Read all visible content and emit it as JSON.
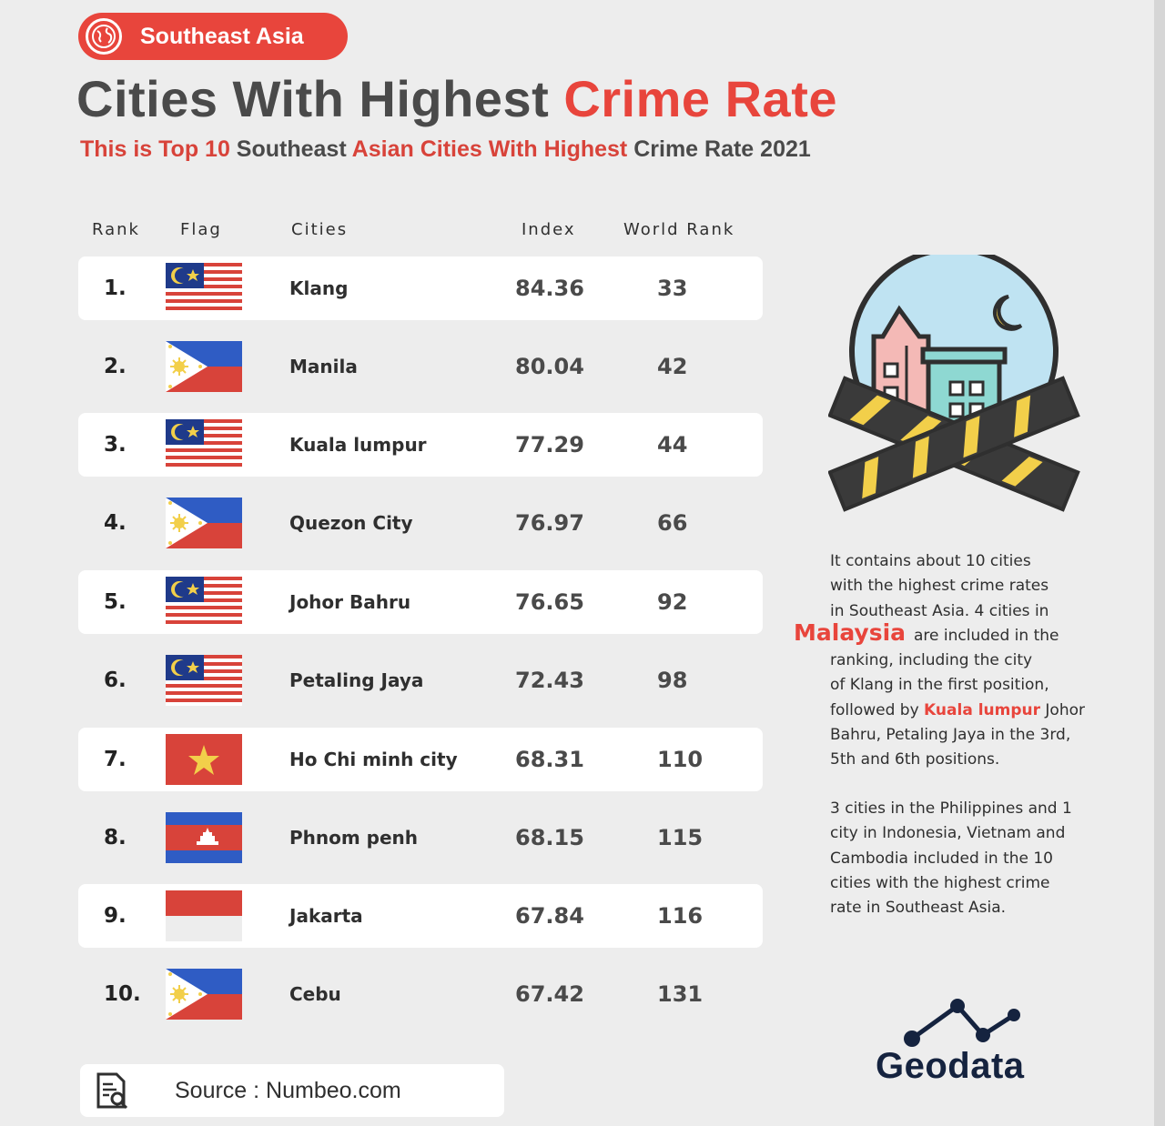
{
  "header": {
    "region_label": "Southeast Asia",
    "title_part1": "Cities With Highest ",
    "title_part2": "Crime Rate",
    "subtitle_part1": "This is Top 10 ",
    "subtitle_part2": "Southeast ",
    "subtitle_part3": "Asian Cities With Highest ",
    "subtitle_part4": "Crime Rate 2021"
  },
  "table": {
    "headers": {
      "rank": "Rank",
      "flag": "Flag",
      "cities": "Cities",
      "index": "Index",
      "world_rank": "World Rank"
    },
    "rows": [
      {
        "rank": "1.",
        "flag": "malaysia",
        "city": "Klang",
        "index": "84.36",
        "world_rank": "33"
      },
      {
        "rank": "2.",
        "flag": "philippines",
        "city": "Manila",
        "index": "80.04",
        "world_rank": "42"
      },
      {
        "rank": "3.",
        "flag": "malaysia",
        "city": "Kuala lumpur",
        "index": "77.29",
        "world_rank": "44"
      },
      {
        "rank": "4.",
        "flag": "philippines",
        "city": "Quezon City",
        "index": "76.97",
        "world_rank": "66"
      },
      {
        "rank": "5.",
        "flag": "malaysia",
        "city": "Johor Bahru",
        "index": "76.65",
        "world_rank": "92"
      },
      {
        "rank": "6.",
        "flag": "malaysia",
        "city": "Petaling Jaya",
        "index": "72.43",
        "world_rank": "98"
      },
      {
        "rank": "7.",
        "flag": "vietnam",
        "city": "Ho Chi minh city",
        "index": "68.31",
        "world_rank": "110"
      },
      {
        "rank": "8.",
        "flag": "cambodia",
        "city": "Phnom penh",
        "index": "68.15",
        "world_rank": "115"
      },
      {
        "rank": "9.",
        "flag": "indonesia",
        "city": "Jakarta",
        "index": "67.84",
        "world_rank": "116"
      },
      {
        "rank": "10.",
        "flag": "philippines",
        "city": "Cebu",
        "index": "67.42",
        "world_rank": "131"
      }
    ]
  },
  "side": {
    "p1_line1": "It contains about 10 cities",
    "p1_line2": "with the highest crime rates",
    "p1_line3": "in Southeast Asia. 4 cities in",
    "p1_highlight": "Malaysia",
    "p1_line4": "are included in the",
    "p1_line5": "ranking, including the city",
    "p1_line6": "of Klang in the first position,",
    "p1_line7a": "followed by ",
    "p1_line7b": "Kuala lumpur",
    "p1_line7c": " Johor",
    "p1_line8": "Bahru, Petaling Jaya in the 3rd,",
    "p1_line9": "5th and 6th positions.",
    "p2_line1": "3 cities in the Philippines and 1",
    "p2_line2": "city in Indonesia, Vietnam and",
    "p2_line3": "Cambodia included in the 10",
    "p2_line4": "cities with the highest crime",
    "p2_line5": "rate in Southeast Asia."
  },
  "brand": {
    "name": "Geodata"
  },
  "source": {
    "label": "Source : Numbeo.com"
  },
  "colors": {
    "accent": "#e8453c",
    "brand_navy": "#15233f",
    "background": "#ededed"
  },
  "icons": [
    "globe-icon",
    "document-search-icon",
    "crime-scene-illustration",
    "geodata-logo-icon"
  ]
}
